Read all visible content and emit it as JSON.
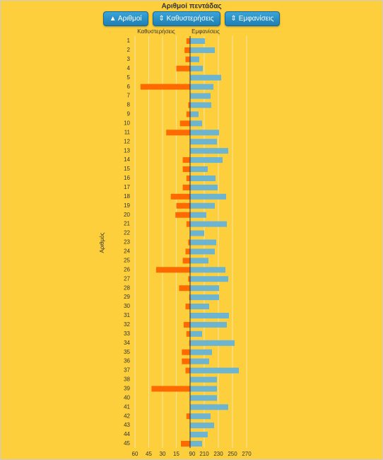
{
  "title": "Αριθμοί πεντάδας",
  "buttons": [
    "▲ Αριθμοί",
    "⇕ Καθυστερήσεις",
    "⇕ Εμφανίσεις"
  ],
  "chart_data": {
    "type": "bar",
    "orientation": "horizontal",
    "y_label": "Αριθμός",
    "categories": [
      "1",
      "2",
      "3",
      "4",
      "5",
      "6",
      "7",
      "8",
      "9",
      "10",
      "11",
      "12",
      "13",
      "14",
      "15",
      "16",
      "17",
      "18",
      "19",
      "20",
      "21",
      "22",
      "23",
      "24",
      "25",
      "26",
      "27",
      "28",
      "29",
      "30",
      "31",
      "32",
      "33",
      "34",
      "35",
      "36",
      "37",
      "38",
      "39",
      "40",
      "41",
      "42",
      "43",
      "44",
      "45"
    ],
    "series": [
      {
        "name": "Καθυστερήσεις",
        "color": "#ff6a00",
        "xlim": [
          60,
          0
        ],
        "xticks": [
          60,
          45,
          30,
          15
        ],
        "values": [
          4,
          6,
          5,
          15,
          0,
          54,
          0,
          2,
          4,
          11,
          26,
          0,
          0,
          8,
          8,
          4,
          8,
          21,
          15,
          16,
          4,
          0,
          2,
          5,
          8,
          37,
          2,
          12,
          1,
          5,
          0,
          7,
          4,
          1,
          9,
          9,
          5,
          0,
          42,
          0,
          0,
          4,
          0,
          0,
          10
        ]
      },
      {
        "name": "Εμφανίσεις",
        "color": "#6cb4d0",
        "xlim": [
          190,
          270
        ],
        "xticks": [
          {
            "value": 190,
            "label": "90"
          },
          210,
          230,
          250,
          270
        ],
        "values": [
          211,
          225,
          203,
          208,
          234,
          223,
          219,
          220,
          202,
          207,
          231,
          228,
          244,
          236,
          215,
          226,
          229,
          241,
          225,
          213,
          242,
          210,
          227,
          225,
          216,
          240,
          244,
          231,
          231,
          217,
          245,
          242,
          207,
          253,
          221,
          217,
          259,
          228,
          228,
          228,
          244,
          219,
          224,
          215,
          207
        ]
      }
    ],
    "grid": true
  }
}
